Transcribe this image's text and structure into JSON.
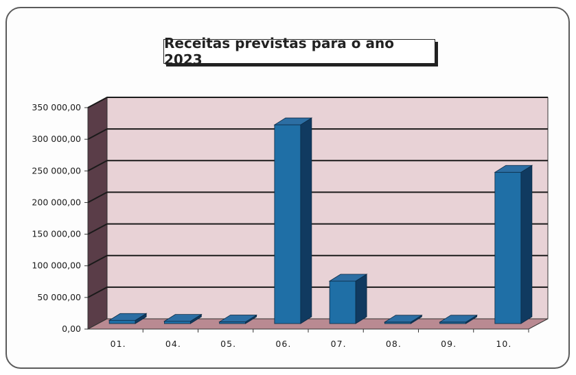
{
  "chart_data": {
    "type": "bar",
    "title": "Receitas previstas para o ano 2023",
    "categories": [
      "01.",
      "04.",
      "05.",
      "06.",
      "07.",
      "08.",
      "09.",
      "10."
    ],
    "values": [
      3000,
      1500,
      500,
      312000,
      65000,
      200,
      200,
      237000
    ],
    "ylim": [
      0,
      350000
    ],
    "yticks": [
      0,
      50000,
      100000,
      150000,
      200000,
      250000,
      300000,
      350000
    ],
    "ytick_labels": [
      "0,00",
      "50 000,00",
      "100 000,00",
      "150 000,00",
      "200 000,00",
      "250 000,00",
      "300 000,00",
      "350 000,00"
    ],
    "xlabel": "",
    "ylabel": "",
    "grid": true,
    "legend": false,
    "colors": {
      "bar_front": "#1f6fa6",
      "bar_side": "#103a60",
      "bar_top": "#2c6ea3",
      "wall": "#e8d2d6",
      "side_wall": "#5a3d48",
      "floor": "#b98a92",
      "gridline": "#1a1a1a"
    }
  }
}
